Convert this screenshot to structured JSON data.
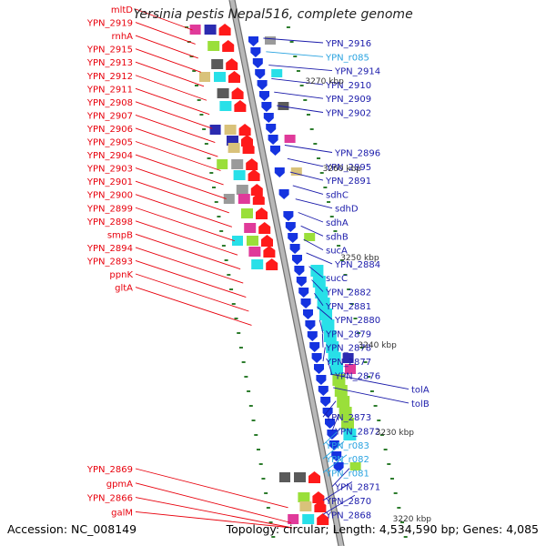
{
  "title": "Yersinia pestis Nepal516, complete genome",
  "footer": {
    "accession": "Accession: NC_008149",
    "topology": "Topology: circular; Length: 4,534,590 bp; Genes: 4,085"
  },
  "colors": {
    "left_label": "#e8000c",
    "right_label": "#1a1aaa",
    "rna_label": "#29a3e0",
    "axis": "#9a9a9a",
    "tick": "#2e7d2e",
    "forward_gene": "#ff1a1a",
    "reverse_gene": "#1533e0",
    "cog_cyan": "#28e0e8",
    "cog_green": "#9adf3a",
    "cog_magenta": "#f0208a"
  },
  "scale_labels": [
    "3270 kbp",
    "3260 kbp",
    "3250 kbp",
    "3240 kbp",
    "3230 kbp",
    "3220 kbp"
  ],
  "left_genes": [
    "mltD",
    "YPN_2919",
    "rnhA",
    "YPN_2915",
    "YPN_2913",
    "YPN_2912",
    "YPN_2911",
    "YPN_2908",
    "YPN_2907",
    "YPN_2906",
    "YPN_2905",
    "YPN_2904",
    "YPN_2903",
    "YPN_2901",
    "YPN_2900",
    "YPN_2899",
    "YPN_2898",
    "smpB",
    "YPN_2894",
    "YPN_2893",
    "ppnK",
    "gltA",
    "YPN_2869",
    "gpmA",
    "YPN_2866",
    "galM"
  ],
  "right_genes": [
    "YPN_2916",
    "YPN_r085",
    "YPN_2914",
    "YPN_2910",
    "YPN_2909",
    "YPN_2902",
    "YPN_2896",
    "YPN_2895",
    "YPN_2891",
    "sdhC",
    "sdhD",
    "sdhA",
    "sdhB",
    "sucA",
    "YPN_2884",
    "sucC",
    "YPN_2882",
    "YPN_2881",
    "YPN_2880",
    "YPN_2879",
    "YPN_2878",
    "YPN_2877",
    "YPN_2876",
    "tolA",
    "tolB",
    "YPN_2873",
    "YPN_2872",
    "YPN_r083",
    "YPN_r082",
    "YPN_r081",
    "YPN_2871",
    "YPN_2870",
    "YPN_2868"
  ],
  "rna_genes": [
    "YPN_r085",
    "YPN_r083",
    "YPN_r082",
    "YPN_r081"
  ]
}
